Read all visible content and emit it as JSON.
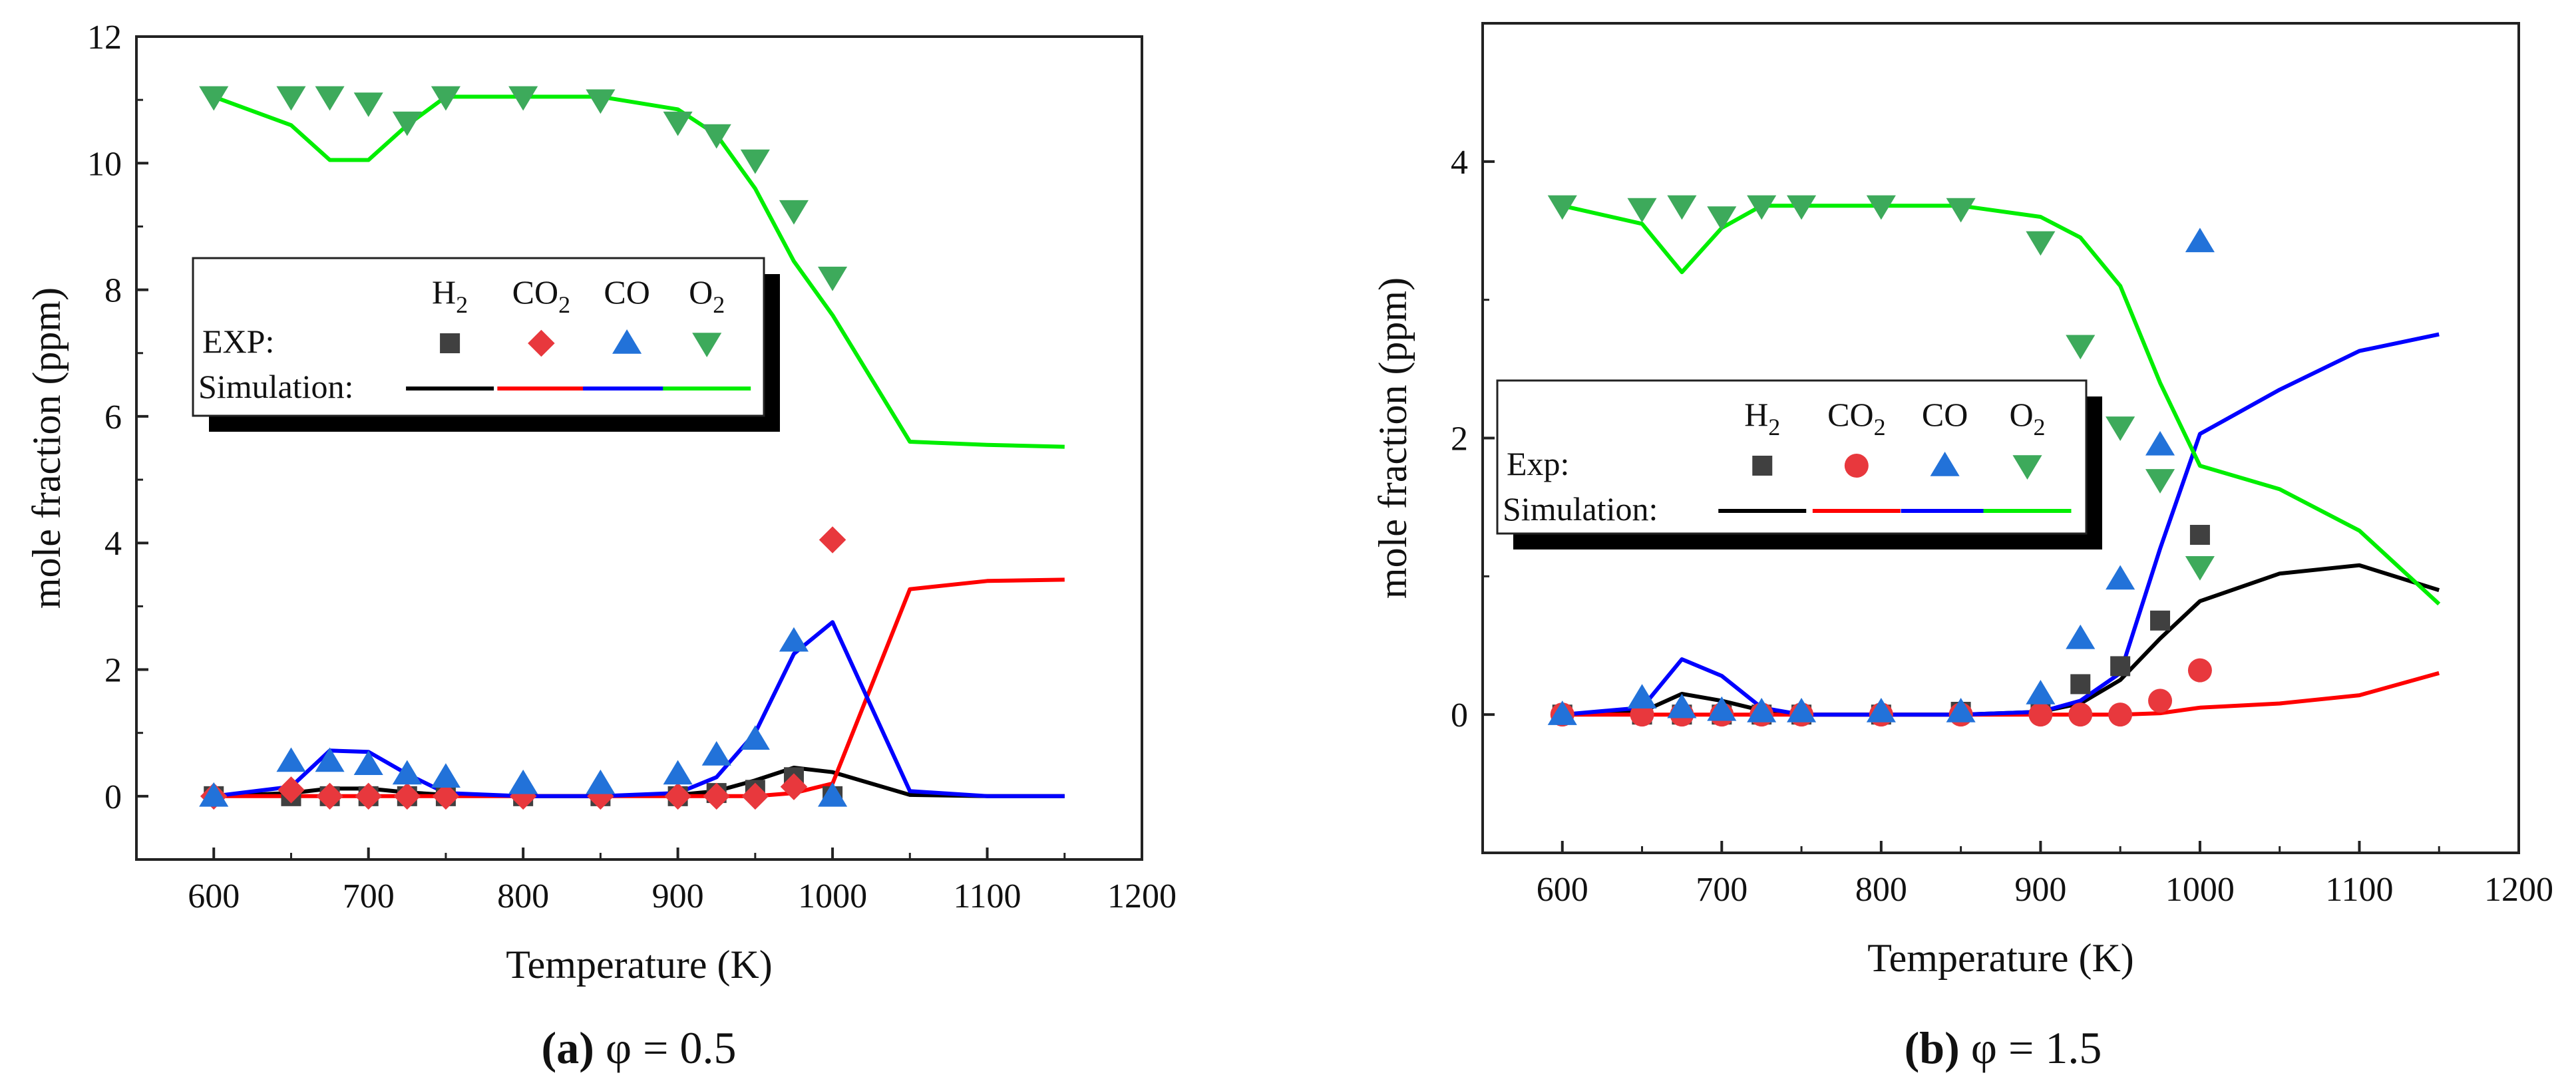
{
  "chart_data": [
    {
      "type": "scatter+line",
      "caption": {
        "label": "(a)",
        "rest": " φ = 0.5"
      },
      "xlabel": "Temperature (K)",
      "ylabel": "mole fraction (ppm)",
      "xlim": [
        550,
        1200
      ],
      "ylim": [
        -1,
        12
      ],
      "xticks": [
        600,
        700,
        800,
        900,
        1000,
        1100,
        1200
      ],
      "yticks": [
        0,
        2,
        4,
        6,
        8,
        10,
        12
      ],
      "legend": {
        "exp_label": "EXP:",
        "sim_label": "Simulation:",
        "species": [
          {
            "main": "H",
            "sub": "2"
          },
          {
            "main": "CO",
            "sub": "2"
          },
          {
            "main": "CO",
            "sub": ""
          },
          {
            "main": "O",
            "sub": "2"
          }
        ],
        "exp_markers": [
          "square",
          "diamond",
          "triangle-up",
          "triangle-down"
        ]
      },
      "experiment": [
        {
          "name": "H2",
          "marker": "square",
          "color": "#404040",
          "x": [
            600,
            650,
            675,
            700,
            725,
            750,
            800,
            850,
            900,
            925,
            950,
            975,
            1000
          ],
          "y": [
            0,
            0,
            0,
            0,
            0,
            0,
            0,
            0,
            0,
            0.05,
            0.1,
            0.3,
            0
          ]
        },
        {
          "name": "CO2",
          "marker": "diamond",
          "color": "#e8383d",
          "x": [
            600,
            650,
            675,
            700,
            725,
            750,
            800,
            850,
            900,
            925,
            950,
            975,
            1000
          ],
          "y": [
            0,
            0.1,
            0,
            0,
            0,
            0,
            0,
            0,
            0,
            0,
            0,
            0.15,
            4.05
          ]
        },
        {
          "name": "CO",
          "marker": "triangle-up",
          "color": "#2272d9",
          "x": [
            600,
            650,
            675,
            700,
            725,
            750,
            800,
            850,
            900,
            925,
            950,
            975,
            1000
          ],
          "y": [
            0,
            0.55,
            0.55,
            0.5,
            0.35,
            0.3,
            0.2,
            0.2,
            0.35,
            0.65,
            0.9,
            2.45,
            0
          ]
        },
        {
          "name": "O2",
          "marker": "triangle-down",
          "color": "#3daa5b",
          "x": [
            600,
            650,
            675,
            700,
            725,
            750,
            800,
            850,
            900,
            925,
            950,
            975,
            1000
          ],
          "y": [
            11.05,
            11.05,
            11.05,
            10.95,
            10.65,
            11.05,
            11.05,
            11.0,
            10.65,
            10.45,
            10.05,
            9.25,
            8.2
          ]
        }
      ],
      "simulation": [
        {
          "name": "H2",
          "color": "#000000",
          "x": [
            600,
            650,
            675,
            700,
            725,
            750,
            800,
            850,
            900,
            925,
            950,
            975,
            1000,
            1050,
            1100,
            1150
          ],
          "y": [
            0,
            0.05,
            0.12,
            0.12,
            0.06,
            0.02,
            0,
            0,
            0.02,
            0.08,
            0.25,
            0.45,
            0.38,
            0.02,
            0,
            0
          ]
        },
        {
          "name": "CO2",
          "color": "#ff0000",
          "x": [
            600,
            650,
            700,
            750,
            800,
            850,
            900,
            950,
            975,
            1000,
            1050,
            1100,
            1150
          ],
          "y": [
            0,
            0,
            0,
            0,
            0,
            0,
            0,
            0,
            0.05,
            0.2,
            3.27,
            3.4,
            3.42
          ]
        },
        {
          "name": "CO",
          "color": "#0000ff",
          "x": [
            600,
            650,
            675,
            700,
            725,
            750,
            800,
            850,
            900,
            925,
            950,
            975,
            1000,
            1050,
            1100,
            1150
          ],
          "y": [
            0,
            0.15,
            0.72,
            0.7,
            0.35,
            0.05,
            0,
            0,
            0.05,
            0.3,
            1.0,
            2.25,
            2.75,
            0.08,
            0,
            0
          ]
        },
        {
          "name": "O2",
          "color": "#00ee00",
          "x": [
            600,
            650,
            675,
            700,
            725,
            750,
            800,
            850,
            900,
            925,
            950,
            975,
            1000,
            1050,
            1100,
            1150
          ],
          "y": [
            11.05,
            10.6,
            10.05,
            10.05,
            10.6,
            11.05,
            11.05,
            11.05,
            10.85,
            10.45,
            9.6,
            8.45,
            7.6,
            5.6,
            5.55,
            5.52
          ]
        }
      ]
    },
    {
      "type": "scatter+line",
      "caption": {
        "label": "(b)",
        "rest": " φ = 1.5"
      },
      "xlabel": "Temperature (K)",
      "ylabel": "mole fraction (ppm)",
      "xlim": [
        550,
        1200
      ],
      "ylim": [
        -1,
        5
      ],
      "xticks": [
        600,
        700,
        800,
        900,
        1000,
        1100,
        1200
      ],
      "yticks": [
        0,
        2,
        4
      ],
      "legend": {
        "exp_label": "Exp:",
        "sim_label": "Simulation:",
        "species": [
          {
            "main": "H",
            "sub": "2"
          },
          {
            "main": "CO",
            "sub": "2"
          },
          {
            "main": "CO",
            "sub": ""
          },
          {
            "main": "O",
            "sub": "2"
          }
        ],
        "exp_markers": [
          "square",
          "circle",
          "triangle-up",
          "triangle-down"
        ]
      },
      "experiment": [
        {
          "name": "H2",
          "marker": "square",
          "color": "#404040",
          "x": [
            600,
            650,
            675,
            700,
            725,
            750,
            800,
            850,
            900,
            925,
            950,
            975,
            1000
          ],
          "y": [
            0,
            0,
            0,
            0,
            0,
            0,
            0,
            0.02,
            0.05,
            0.22,
            0.35,
            0.68,
            1.3
          ]
        },
        {
          "name": "CO2",
          "marker": "circle",
          "color": "#e8383d",
          "x": [
            600,
            650,
            675,
            700,
            725,
            750,
            800,
            850,
            900,
            925,
            950,
            975,
            1000
          ],
          "y": [
            0,
            0,
            0,
            0,
            0,
            0,
            0,
            0,
            0,
            0,
            0,
            0.1,
            0.32
          ]
        },
        {
          "name": "CO",
          "marker": "triangle-up",
          "color": "#2272d9",
          "x": [
            600,
            650,
            675,
            700,
            725,
            750,
            800,
            850,
            900,
            925,
            950,
            975,
            1000
          ],
          "y": [
            0,
            0.12,
            0.05,
            0.03,
            0.02,
            0.02,
            0.02,
            0.02,
            0.15,
            0.55,
            0.98,
            1.95,
            3.42
          ]
        },
        {
          "name": "O2",
          "marker": "triangle-down",
          "color": "#3daa5b",
          "x": [
            600,
            650,
            675,
            700,
            725,
            750,
            800,
            850,
            900,
            925,
            950,
            975,
            1000
          ],
          "y": [
            3.68,
            3.66,
            3.68,
            3.6,
            3.68,
            3.68,
            3.68,
            3.66,
            3.42,
            2.67,
            2.08,
            1.7,
            1.07
          ]
        }
      ],
      "simulation": [
        {
          "name": "H2",
          "color": "#000000",
          "x": [
            600,
            650,
            675,
            700,
            725,
            750,
            800,
            850,
            900,
            925,
            950,
            975,
            1000,
            1050,
            1100,
            1150
          ],
          "y": [
            0,
            0.02,
            0.15,
            0.1,
            0.03,
            0,
            0,
            0,
            0.02,
            0.08,
            0.25,
            0.55,
            0.82,
            1.02,
            1.08,
            0.9
          ]
        },
        {
          "name": "CO2",
          "color": "#ff0000",
          "x": [
            600,
            650,
            700,
            750,
            800,
            850,
            900,
            950,
            975,
            1000,
            1050,
            1100,
            1150
          ],
          "y": [
            0,
            0,
            0,
            0,
            0,
            0,
            0,
            0,
            0.01,
            0.05,
            0.08,
            0.14,
            0.3
          ]
        },
        {
          "name": "CO",
          "color": "#0000ff",
          "x": [
            600,
            650,
            675,
            700,
            725,
            750,
            800,
            850,
            900,
            925,
            950,
            975,
            1000,
            1050,
            1100,
            1150
          ],
          "y": [
            0,
            0.05,
            0.4,
            0.28,
            0.05,
            0,
            0,
            0,
            0.02,
            0.1,
            0.3,
            1.2,
            2.03,
            2.35,
            2.63,
            2.75
          ]
        },
        {
          "name": "O2",
          "color": "#00ee00",
          "x": [
            600,
            650,
            675,
            700,
            725,
            750,
            800,
            850,
            900,
            925,
            950,
            975,
            1000,
            1050,
            1100,
            1150
          ],
          "y": [
            3.68,
            3.55,
            3.2,
            3.52,
            3.68,
            3.68,
            3.68,
            3.68,
            3.6,
            3.45,
            3.1,
            2.4,
            1.8,
            1.63,
            1.33,
            0.8
          ]
        }
      ]
    }
  ]
}
